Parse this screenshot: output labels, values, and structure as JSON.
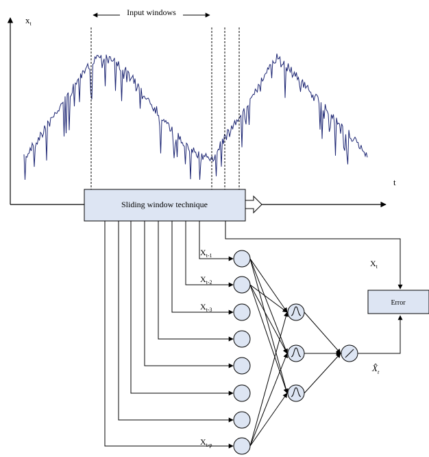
{
  "axes": {
    "y_label_main": "x",
    "y_label_sub": "t",
    "x_label": "t"
  },
  "input_windows_label": "Input windows",
  "sliding_window_label": "Sliding window technique",
  "error_label": "Error",
  "target": {
    "main": "X",
    "sub": "t"
  },
  "prediction": {
    "main": "X̂",
    "sub": "t"
  },
  "inputs": [
    {
      "main": "X",
      "sub": "t-1"
    },
    {
      "main": "X",
      "sub": "t-2"
    },
    {
      "main": "X",
      "sub": "t-3"
    },
    {
      "main": "X",
      "sub": "t-p"
    }
  ],
  "colors": {
    "series": "#1b2472",
    "box_fill": "#dde5f3",
    "line": "#000000"
  }
}
